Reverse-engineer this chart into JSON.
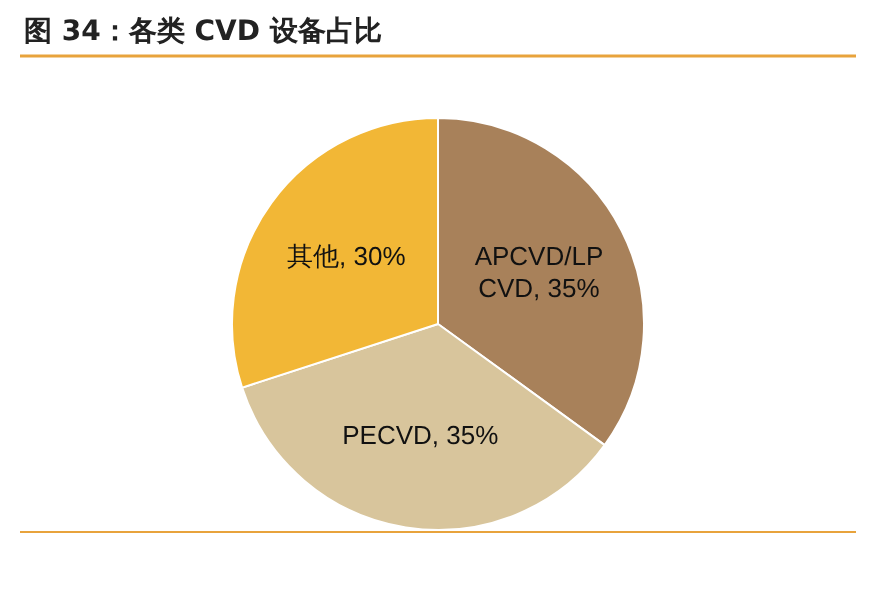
{
  "chart_data": {
    "type": "pie",
    "title": "图 34：各类 CVD 设备占比",
    "categories": [
      "APCVD/LPCVD",
      "PECVD",
      "其他"
    ],
    "values": [
      35,
      35,
      30
    ],
    "value_labels": [
      "35%",
      "35%",
      "30%"
    ],
    "colors": [
      "#a8815a",
      "#d8c59c",
      "#f2b736"
    ]
  }
}
